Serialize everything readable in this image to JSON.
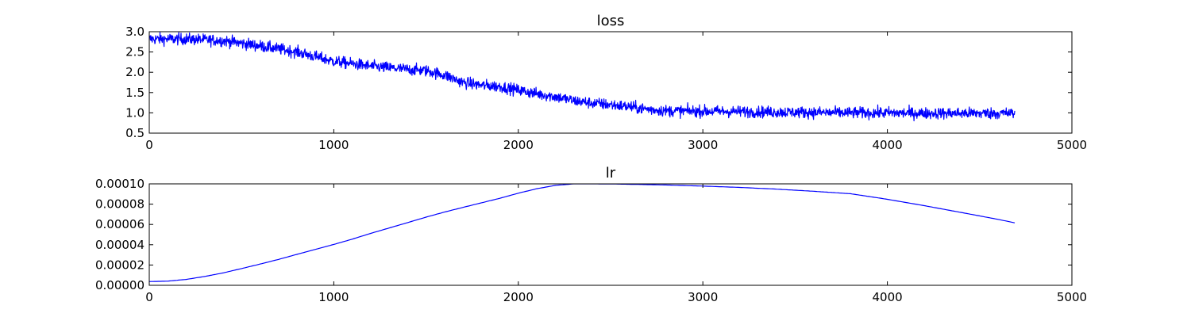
{
  "chart_data": [
    {
      "type": "line",
      "title": "loss",
      "xlabel": "",
      "ylabel": "",
      "xlim": [
        0,
        5000
      ],
      "ylim": [
        0.5,
        3.0
      ],
      "xticks": [
        "0",
        "1000",
        "2000",
        "3000",
        "4000",
        "5000"
      ],
      "yticks": [
        "0.5",
        "1.0",
        "1.5",
        "2.0",
        "2.5",
        "3.0"
      ],
      "grid": false,
      "color": "#0000ff",
      "series": [
        {
          "name": "",
          "x": [
            0,
            200,
            400,
            600,
            800,
            1000,
            1200,
            1400,
            1500,
            1600,
            1700,
            1800,
            1900,
            2000,
            2100,
            2200,
            2300,
            2400,
            2500,
            2600,
            2700,
            2800,
            3000,
            3200,
            3400,
            3600,
            3800,
            4000,
            4200,
            4400,
            4600,
            4690
          ],
          "y": [
            2.82,
            2.82,
            2.78,
            2.65,
            2.5,
            2.27,
            2.15,
            2.07,
            2.04,
            1.93,
            1.75,
            1.68,
            1.65,
            1.56,
            1.47,
            1.4,
            1.3,
            1.24,
            1.2,
            1.15,
            1.09,
            1.05,
            1.04,
            1.03,
            1.02,
            1.01,
            1.0,
            1.0,
            0.99,
            0.99,
            0.99,
            0.99
          ],
          "noise": 0.07
        }
      ]
    },
    {
      "type": "line",
      "title": "lr",
      "xlabel": "",
      "ylabel": "",
      "xlim": [
        0,
        5000
      ],
      "ylim": [
        0,
        0.0001
      ],
      "xticks": [
        "0",
        "1000",
        "2000",
        "3000",
        "4000",
        "5000"
      ],
      "yticks": [
        "0.00000",
        "0.00002",
        "0.00004",
        "0.00006",
        "0.00008",
        "0.00010"
      ],
      "grid": false,
      "color": "#0000ff",
      "series": [
        {
          "name": "",
          "x": [
            0,
            100,
            200,
            300,
            400,
            500,
            600,
            700,
            800,
            900,
            1000,
            1100,
            1200,
            1300,
            1400,
            1500,
            1600,
            1700,
            1800,
            1900,
            2000,
            2100,
            2200,
            2300,
            2400,
            2500,
            2600,
            2800,
            3000,
            3200,
            3400,
            3600,
            3800,
            4000,
            4200,
            4400,
            4600,
            4690
          ],
          "y": [
            3.7e-06,
            4.1e-06,
            5.8e-06,
            8.7e-06,
            1.22e-05,
            1.65e-05,
            2.09e-05,
            2.55e-05,
            3.05e-05,
            3.54e-05,
            4.03e-05,
            4.55e-05,
            5.12e-05,
            5.65e-05,
            6.18e-05,
            6.72e-05,
            7.22e-05,
            7.68e-05,
            8.13e-05,
            8.58e-05,
            9.08e-05,
            9.52e-05,
            9.85e-05,
            0.0001,
            0.0001,
            9.99e-05,
            9.96e-05,
            9.89e-05,
            9.78e-05,
            9.65e-05,
            9.48e-05,
            9.27e-05,
            9.03e-05,
            8.48e-05,
            7.85e-05,
            7.18e-05,
            6.5e-05,
            6.16e-05
          ]
        }
      ]
    }
  ]
}
